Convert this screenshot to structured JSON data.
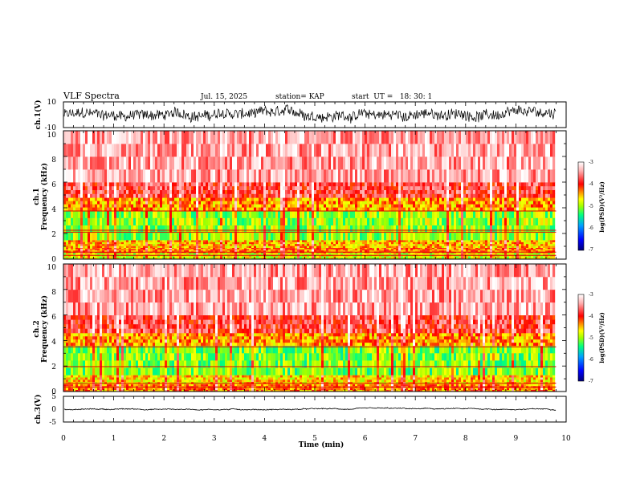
{
  "chart_data": {
    "type": "heatmap",
    "title": "VLF Spectra",
    "header": {
      "date": "Jul. 15, 2025",
      "station": "station= KAP",
      "start": "start  UT =   18: 30: 1"
    },
    "xlabel": "Time (min)",
    "xlim": [
      0,
      10
    ],
    "xticks": [
      "0",
      "1",
      "2",
      "3",
      "4",
      "5",
      "6",
      "7",
      "8",
      "9",
      "10"
    ],
    "colors": {
      "axis": "#000000",
      "trace": "#000000",
      "cmap": [
        "#000078",
        "#0000ff",
        "#00a0ff",
        "#00ff80",
        "#a0ff00",
        "#ffff00",
        "#ff8c00",
        "#ff0000",
        "#ffb0b0",
        "#ffffff"
      ]
    },
    "panels": [
      {
        "id": "ch1-waveform",
        "kind": "line",
        "ylabel": "ch.1(V)",
        "ylim": [
          -10,
          10
        ],
        "yticks": [
          "10",
          "-10"
        ],
        "trace": {
          "mean": 0,
          "amplitude": 5,
          "x_end": 9.8
        }
      },
      {
        "id": "ch1-spectrogram",
        "kind": "heatmap",
        "ylabel_top": "ch.1",
        "ylabel": "Frequency (kHz)",
        "ylim": [
          0,
          10
        ],
        "yticks": [
          "0",
          "2",
          "4",
          "6",
          "8",
          "10"
        ],
        "x_end": 9.8,
        "bands": [
          {
            "from": 0,
            "to": 0.5,
            "level": -4.8
          },
          {
            "from": 0.5,
            "to": 0.9,
            "level": -4.3
          },
          {
            "from": 0.9,
            "to": 1.5,
            "level": -4.5
          },
          {
            "from": 1.5,
            "to": 3.8,
            "level": -5.0
          },
          {
            "from": 3.8,
            "to": 4.8,
            "level": -4.4
          },
          {
            "from": 4.8,
            "to": 6,
            "level": -3.8
          },
          {
            "from": 6,
            "to": 10,
            "level": -3.4
          }
        ],
        "lines_khz": [
          0.3,
          0.55,
          2.1,
          2.25,
          3.75
        ],
        "colorbar": {
          "label": "log(PSD)(V²/Hz)",
          "range": [
            -7,
            -3
          ],
          "ticks": [
            "-3",
            "-4",
            "-5",
            "-6",
            "-7"
          ]
        }
      },
      {
        "id": "ch2-spectrogram",
        "kind": "heatmap",
        "ylabel_top": "ch.2",
        "ylabel": "Frequency (kHz)",
        "ylim": [
          0,
          10
        ],
        "yticks": [
          "0",
          "2",
          "4",
          "6",
          "8",
          "10"
        ],
        "x_end": 9.8,
        "bands": [
          {
            "from": 0,
            "to": 0.6,
            "level": -4.3
          },
          {
            "from": 0.6,
            "to": 1.3,
            "level": -4.6
          },
          {
            "from": 1.3,
            "to": 3.6,
            "level": -5.1
          },
          {
            "from": 3.6,
            "to": 4.6,
            "level": -4.4
          },
          {
            "from": 4.6,
            "to": 6,
            "level": -3.8
          },
          {
            "from": 6,
            "to": 10,
            "level": -3.4
          }
        ],
        "lines_khz": [
          0.35,
          0.65,
          1.95,
          3.5
        ],
        "colorbar": {
          "label": "log(PSD)(V²/Hz)",
          "range": [
            -7,
            -3
          ],
          "ticks": [
            "-3",
            "-4",
            "-5",
            "-6",
            "-7"
          ]
        }
      },
      {
        "id": "ch3-waveform",
        "kind": "line",
        "ylabel": "ch.3(V)",
        "ylim": [
          -5,
          5
        ],
        "yticks": [
          "5",
          "0",
          "-5"
        ],
        "trace": {
          "mean": 0,
          "amplitude": 0.6,
          "x_end": 9.8
        }
      }
    ]
  }
}
